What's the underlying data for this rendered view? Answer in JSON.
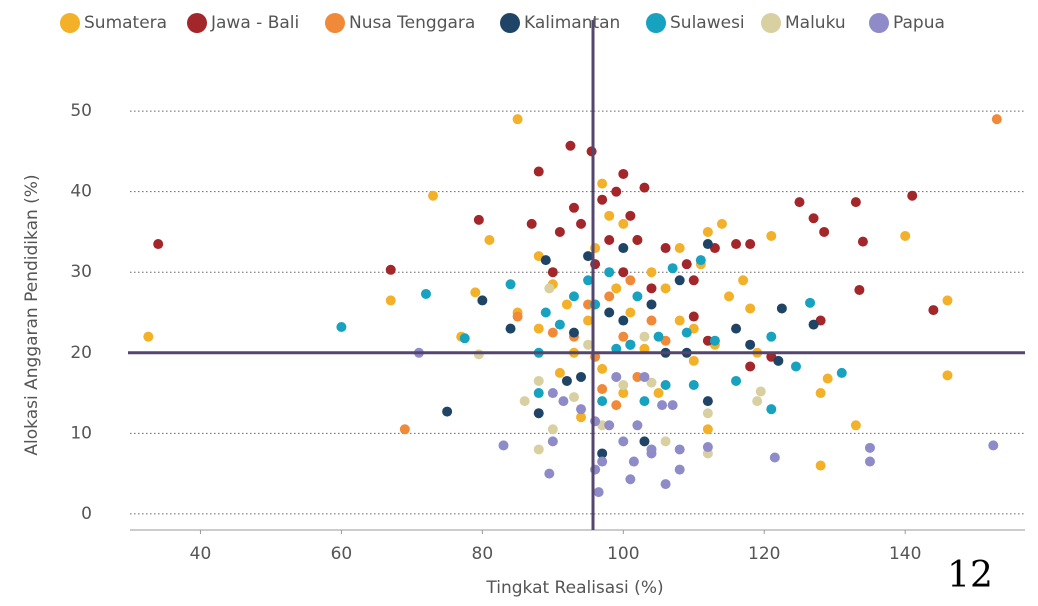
{
  "chart_data": {
    "type": "scatter",
    "x_label": "Tingkat Realisasi (%)",
    "y_label": "Alokasi Anggaran Pendidikan (%)",
    "xlim": [
      30,
      157
    ],
    "ylim": [
      -2,
      52
    ],
    "xticks": [
      40,
      60,
      80,
      100,
      120,
      140
    ],
    "yticks": [
      0,
      10,
      20,
      30,
      40,
      50
    ],
    "grid": true,
    "legend": "top",
    "vline": 95.7,
    "hline": 20,
    "reference_color": "#54466f",
    "series": [
      {
        "name": "Sumatera",
        "color": "#f2b128",
        "x": [
          32.6,
          85,
          73,
          67,
          81,
          79,
          77,
          88,
          90,
          92,
          95,
          97,
          98,
          100,
          102,
          104,
          106,
          108,
          110,
          112,
          114,
          117,
          121,
          140,
          146,
          146,
          128,
          129,
          133,
          128,
          112,
          100,
          97,
          93,
          88,
          103,
          105,
          110,
          115,
          118,
          96,
          99,
          101,
          91,
          85,
          108,
          111,
          113,
          119,
          94
        ],
        "values": [
          22,
          49,
          39.5,
          26.5,
          34,
          27.5,
          22,
          32,
          28.5,
          26,
          24,
          41,
          37,
          36,
          34,
          30,
          28,
          24,
          23,
          35,
          36,
          29,
          34.5,
          34.5,
          26.5,
          17.2,
          15,
          16.8,
          11,
          6,
          10.5,
          15,
          18,
          20,
          23,
          20.5,
          15,
          19,
          27,
          25.5,
          33,
          28,
          25,
          17.5,
          25,
          33,
          31,
          21,
          20,
          12
        ]
      },
      {
        "name": "Jawa - Bali",
        "color": "#a3262a",
        "x": [
          34,
          67,
          79.5,
          88,
          92.5,
          95.5,
          100,
          103,
          93,
          97,
          99,
          101,
          91,
          94,
          102,
          106,
          109,
          110,
          113,
          116,
          118,
          125,
          127,
          128.5,
          133,
          134,
          141,
          144,
          133.5,
          128,
          121,
          118,
          110,
          96,
          98,
          104,
          87,
          90,
          112,
          100
        ],
        "values": [
          33.5,
          30.3,
          36.5,
          42.5,
          45.7,
          45,
          42.2,
          40.5,
          38,
          39,
          40,
          37,
          35,
          36,
          34,
          33,
          31,
          29,
          33,
          33.5,
          33.5,
          38.7,
          36.7,
          35,
          38.7,
          33.8,
          39.5,
          25.3,
          27.8,
          24,
          19.5,
          18.3,
          24.5,
          31,
          34,
          28,
          36,
          30,
          21.5,
          30
        ]
      },
      {
        "name": "Nusa Tenggara",
        "color": "#f08a38",
        "x": [
          69,
          153,
          85,
          95,
          98,
          100,
          102,
          99,
          97,
          93,
          106,
          104,
          90,
          101,
          96
        ],
        "values": [
          10.5,
          49,
          24.5,
          26,
          27,
          22,
          17,
          13.5,
          15.5,
          22,
          21.5,
          24,
          22.5,
          29,
          19.5
        ]
      },
      {
        "name": "Kalimantan",
        "color": "#1f4466",
        "x": [
          75,
          80,
          88,
          93,
          94,
          97,
          98,
          100,
          101,
          103,
          104,
          106,
          108,
          109,
          112,
          112,
          116,
          118,
          122,
          122.5,
          127,
          89,
          95,
          100,
          92,
          84
        ],
        "values": [
          12.7,
          26.5,
          12.5,
          22.5,
          17,
          7.5,
          25,
          24,
          21,
          9,
          26,
          20,
          29,
          20,
          33.5,
          14,
          23,
          21,
          19,
          25.5,
          23.5,
          31.5,
          32,
          33,
          16.5,
          23
        ]
      },
      {
        "name": "Sulawesi",
        "color": "#17a2c0",
        "x": [
          60,
          72,
          77.5,
          84,
          88,
          89,
          91,
          93,
          95,
          96,
          98,
          99,
          101,
          102,
          103,
          105,
          106,
          107,
          109,
          110,
          111,
          113,
          116,
          121,
          121,
          124.5,
          126.5,
          131,
          88,
          97
        ],
        "values": [
          23.2,
          27.3,
          21.8,
          28.5,
          20,
          25,
          23.5,
          27,
          29,
          26,
          30,
          20.5,
          21,
          27,
          14,
          22,
          16,
          30.5,
          22.5,
          16,
          31.5,
          21.5,
          16.5,
          22,
          13,
          18.3,
          26.2,
          17.5,
          15,
          14
        ]
      },
      {
        "name": "Maluku",
        "color": "#d9d0a2",
        "x": [
          79.5,
          86,
          88,
          88,
          90,
          93,
          95,
          97,
          100,
          103,
          104,
          106,
          112,
          112,
          119.5,
          119,
          89.5
        ],
        "values": [
          19.8,
          14,
          16.5,
          8,
          10.5,
          14.5,
          21,
          11,
          16,
          22,
          16.3,
          9,
          12.5,
          7.5,
          15.2,
          14,
          28
        ]
      },
      {
        "name": "Papua",
        "color": "#8e8bc8",
        "x": [
          71,
          83,
          89.5,
          90,
          91.5,
          94,
          96,
          96,
          97,
          96.5,
          98,
          100,
          101,
          101.5,
          102,
          104,
          104,
          105.5,
          106,
          107,
          108,
          108,
          112,
          121.5,
          135,
          135,
          152.5,
          90,
          99,
          103
        ],
        "values": [
          20,
          8.5,
          5,
          9,
          14,
          13,
          11.5,
          5.5,
          6.5,
          2.7,
          11,
          9,
          4.3,
          6.5,
          11,
          7.5,
          8,
          13.5,
          3.7,
          13.5,
          5.5,
          8,
          8.3,
          7,
          8.2,
          6.5,
          8.5,
          15,
          17,
          17
        ]
      }
    ]
  },
  "page_number": "12"
}
